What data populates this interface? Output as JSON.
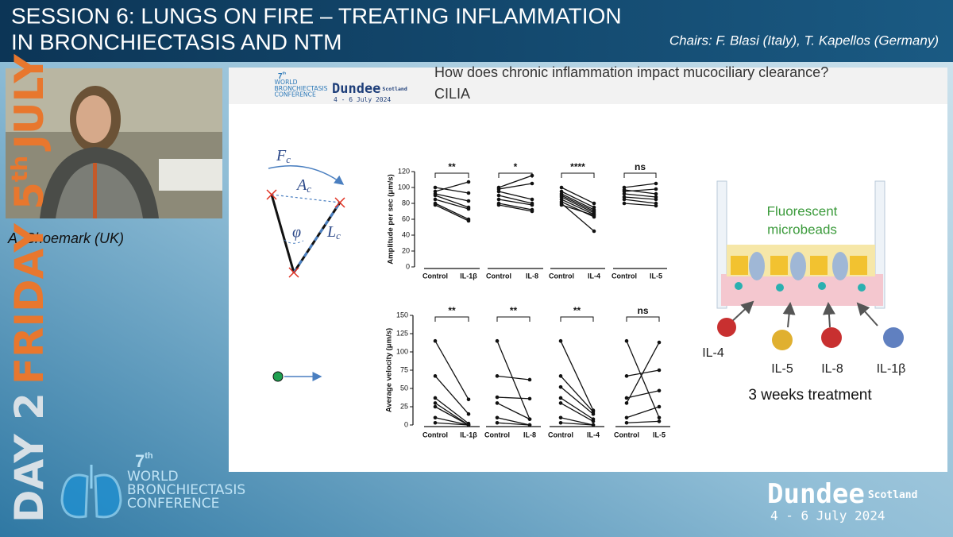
{
  "header": {
    "title_line1": "SESSION 6: LUNGS ON FIRE – TREATING INFLAMMATION",
    "title_line2": "IN BRONCHIECTASIS AND NTM",
    "chairs": "Chairs: F. Blasi (Italy), T. Kapellos (Germany)"
  },
  "speaker": {
    "name": "A. Shoemark (UK)"
  },
  "sidebar": {
    "day": "DAY 2",
    "date": "FRIDAY 5",
    "ordinal": "th",
    "month": "JULY"
  },
  "conference": {
    "number": "7",
    "ordinal": "th",
    "line1": "WORLD",
    "line2": "BRONCHIECTASIS",
    "line3": "CONFERENCE"
  },
  "venue": {
    "city": "Dundee",
    "country": "Scotland",
    "dates": "4 - 6 July 2024"
  },
  "slide": {
    "question": "How does chronic  inflammation impact mucociliary clearance?",
    "subtitle": "CILIA",
    "diagram": {
      "force": {
        "main": "F",
        "sub": "c"
      },
      "area": {
        "main": "A",
        "sub": "c"
      },
      "angle": "φ",
      "length": {
        "main": "L",
        "sub": "c"
      }
    },
    "amplitude_chart": {
      "y_label": "Amplitude per sec (μm/s)",
      "ylim": [
        0,
        120
      ],
      "yticks": [
        0,
        20,
        40,
        60,
        80,
        100,
        120
      ],
      "groups": [
        {
          "labels": [
            "Control",
            "IL-1β"
          ],
          "significance": "**",
          "pairs": [
            [
              100,
              93
            ],
            [
              95,
              107
            ],
            [
              92,
              83
            ],
            [
              90,
              75
            ],
            [
              85,
              73
            ],
            [
              80,
              60
            ],
            [
              78,
              58
            ]
          ]
        },
        {
          "labels": [
            "Control",
            "IL-8"
          ],
          "significance": "*",
          "pairs": [
            [
              100,
              115
            ],
            [
              98,
              105
            ],
            [
              95,
              85
            ],
            [
              90,
              80
            ],
            [
              85,
              78
            ],
            [
              80,
              72
            ],
            [
              78,
              70
            ]
          ]
        },
        {
          "labels": [
            "Control",
            "IL-4"
          ],
          "significance": "****",
          "pairs": [
            [
              100,
              80
            ],
            [
              95,
              75
            ],
            [
              92,
              72
            ],
            [
              90,
              70
            ],
            [
              88,
              68
            ],
            [
              85,
              66
            ],
            [
              82,
              63
            ],
            [
              80,
              45
            ],
            [
              78,
              65
            ]
          ]
        },
        {
          "labels": [
            "Control",
            "IL-5"
          ],
          "significance": "ns",
          "pairs": [
            [
              100,
              105
            ],
            [
              97,
              92
            ],
            [
              95,
              98
            ],
            [
              92,
              88
            ],
            [
              88,
              85
            ],
            [
              85,
              80
            ],
            [
              80,
              77
            ]
          ]
        }
      ]
    },
    "velocity_chart": {
      "y_label": "Average velocity (μm/s)",
      "ylim": [
        0,
        150
      ],
      "yticks": [
        0,
        25,
        50,
        75,
        100,
        125,
        150
      ],
      "groups": [
        {
          "labels": [
            "Control",
            "IL-1β"
          ],
          "significance": "**",
          "pairs": [
            [
              115,
              35
            ],
            [
              67,
              15
            ],
            [
              37,
              2
            ],
            [
              30,
              0
            ],
            [
              25,
              0
            ],
            [
              10,
              0
            ],
            [
              3,
              0
            ]
          ]
        },
        {
          "labels": [
            "Control",
            "IL-8"
          ],
          "significance": "**",
          "pairs": [
            [
              115,
              8
            ],
            [
              67,
              62
            ],
            [
              38,
              36
            ],
            [
              30,
              8
            ],
            [
              10,
              0
            ],
            [
              3,
              0
            ]
          ]
        },
        {
          "labels": [
            "Control",
            "IL-4"
          ],
          "significance": "**",
          "pairs": [
            [
              115,
              20
            ],
            [
              67,
              18
            ],
            [
              52,
              15
            ],
            [
              37,
              8
            ],
            [
              30,
              5
            ],
            [
              10,
              0
            ],
            [
              3,
              0
            ]
          ]
        },
        {
          "labels": [
            "Control",
            "IL-5"
          ],
          "significance": "ns",
          "pairs": [
            [
              115,
              10
            ],
            [
              67,
              75
            ],
            [
              37,
              47
            ],
            [
              30,
              113
            ],
            [
              10,
              25
            ],
            [
              3,
              5
            ]
          ]
        }
      ]
    },
    "schematic": {
      "beads_line1": "Fluorescent",
      "beads_line2": "microbeads",
      "cytokines": [
        "IL-4",
        "IL-5",
        "IL-8",
        "IL-1β"
      ],
      "treatment": "3 weeks treatment"
    }
  }
}
